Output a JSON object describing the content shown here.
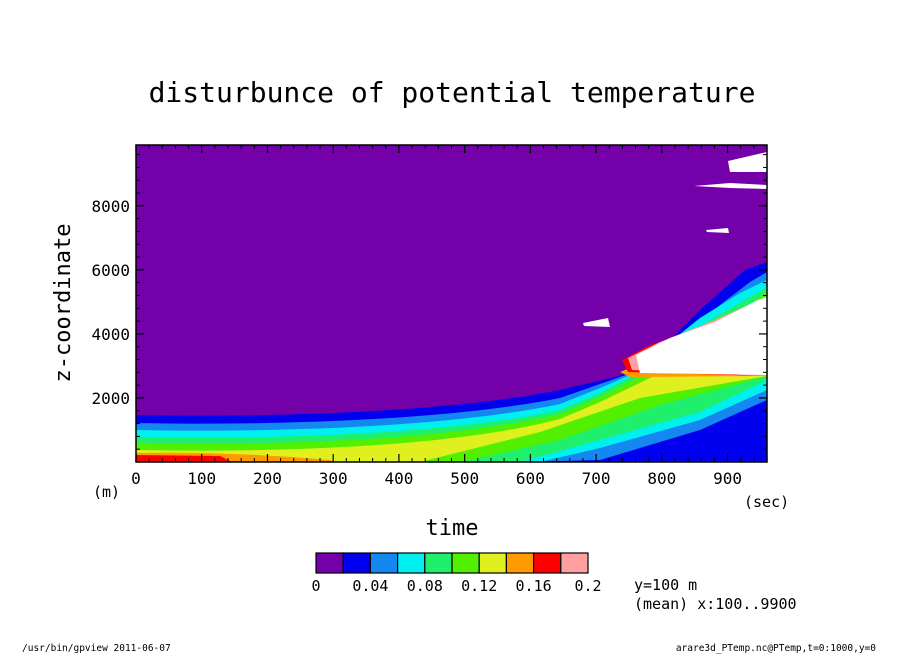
{
  "chart_data": {
    "type": "heatmap",
    "title": "disturbunce of potential temperature",
    "xlabel": "time",
    "ylabel": "z-coordinate",
    "x_unit": "(sec)",
    "y_unit": "(m)",
    "xlim": [
      0,
      960
    ],
    "ylim": [
      0,
      9900
    ],
    "x_ticks": [
      "0",
      "100",
      "200",
      "300",
      "400",
      "500",
      "600",
      "700",
      "800",
      "900"
    ],
    "y_ticks": [
      "2000",
      "4000",
      "6000",
      "8000"
    ],
    "x_tick_values": [
      0,
      100,
      200,
      300,
      400,
      500,
      600,
      700,
      800,
      900
    ],
    "y_tick_values": [
      2000,
      4000,
      6000,
      8000
    ],
    "colorbar": {
      "colors": [
        "#7300a8",
        "#0000ee",
        "#1487f0",
        "#00f0f0",
        "#1ef06e",
        "#52f000",
        "#dff01e",
        "#ff9a00",
        "#ff0000",
        "#ff9f9f"
      ],
      "labels": [
        "0",
        "0.04",
        "0.08",
        "0.12",
        "0.16",
        "0.2"
      ],
      "label_values": [
        0,
        0.04,
        0.08,
        0.12,
        0.16,
        0.2
      ]
    },
    "annotations": [
      "y=100 m",
      "(mean) x:100..9900"
    ]
  },
  "footer": {
    "left": "/usr/bin/gpview  2011-06-07",
    "right": "arare3d_PTemp.nc@PTemp,t=0:1000,y=0"
  }
}
